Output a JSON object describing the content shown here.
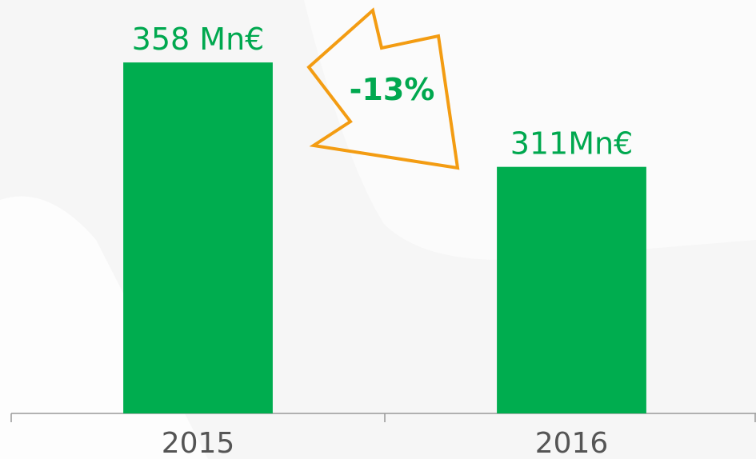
{
  "chart_data": {
    "type": "bar",
    "categories": [
      "2015",
      "2016"
    ],
    "values": [
      358,
      311
    ],
    "value_labels": [
      "358 Mn€",
      "311Mn€"
    ],
    "color": "#00ad4f",
    "ylim": [
      200,
      380
    ],
    "annotation": "-13%"
  }
}
